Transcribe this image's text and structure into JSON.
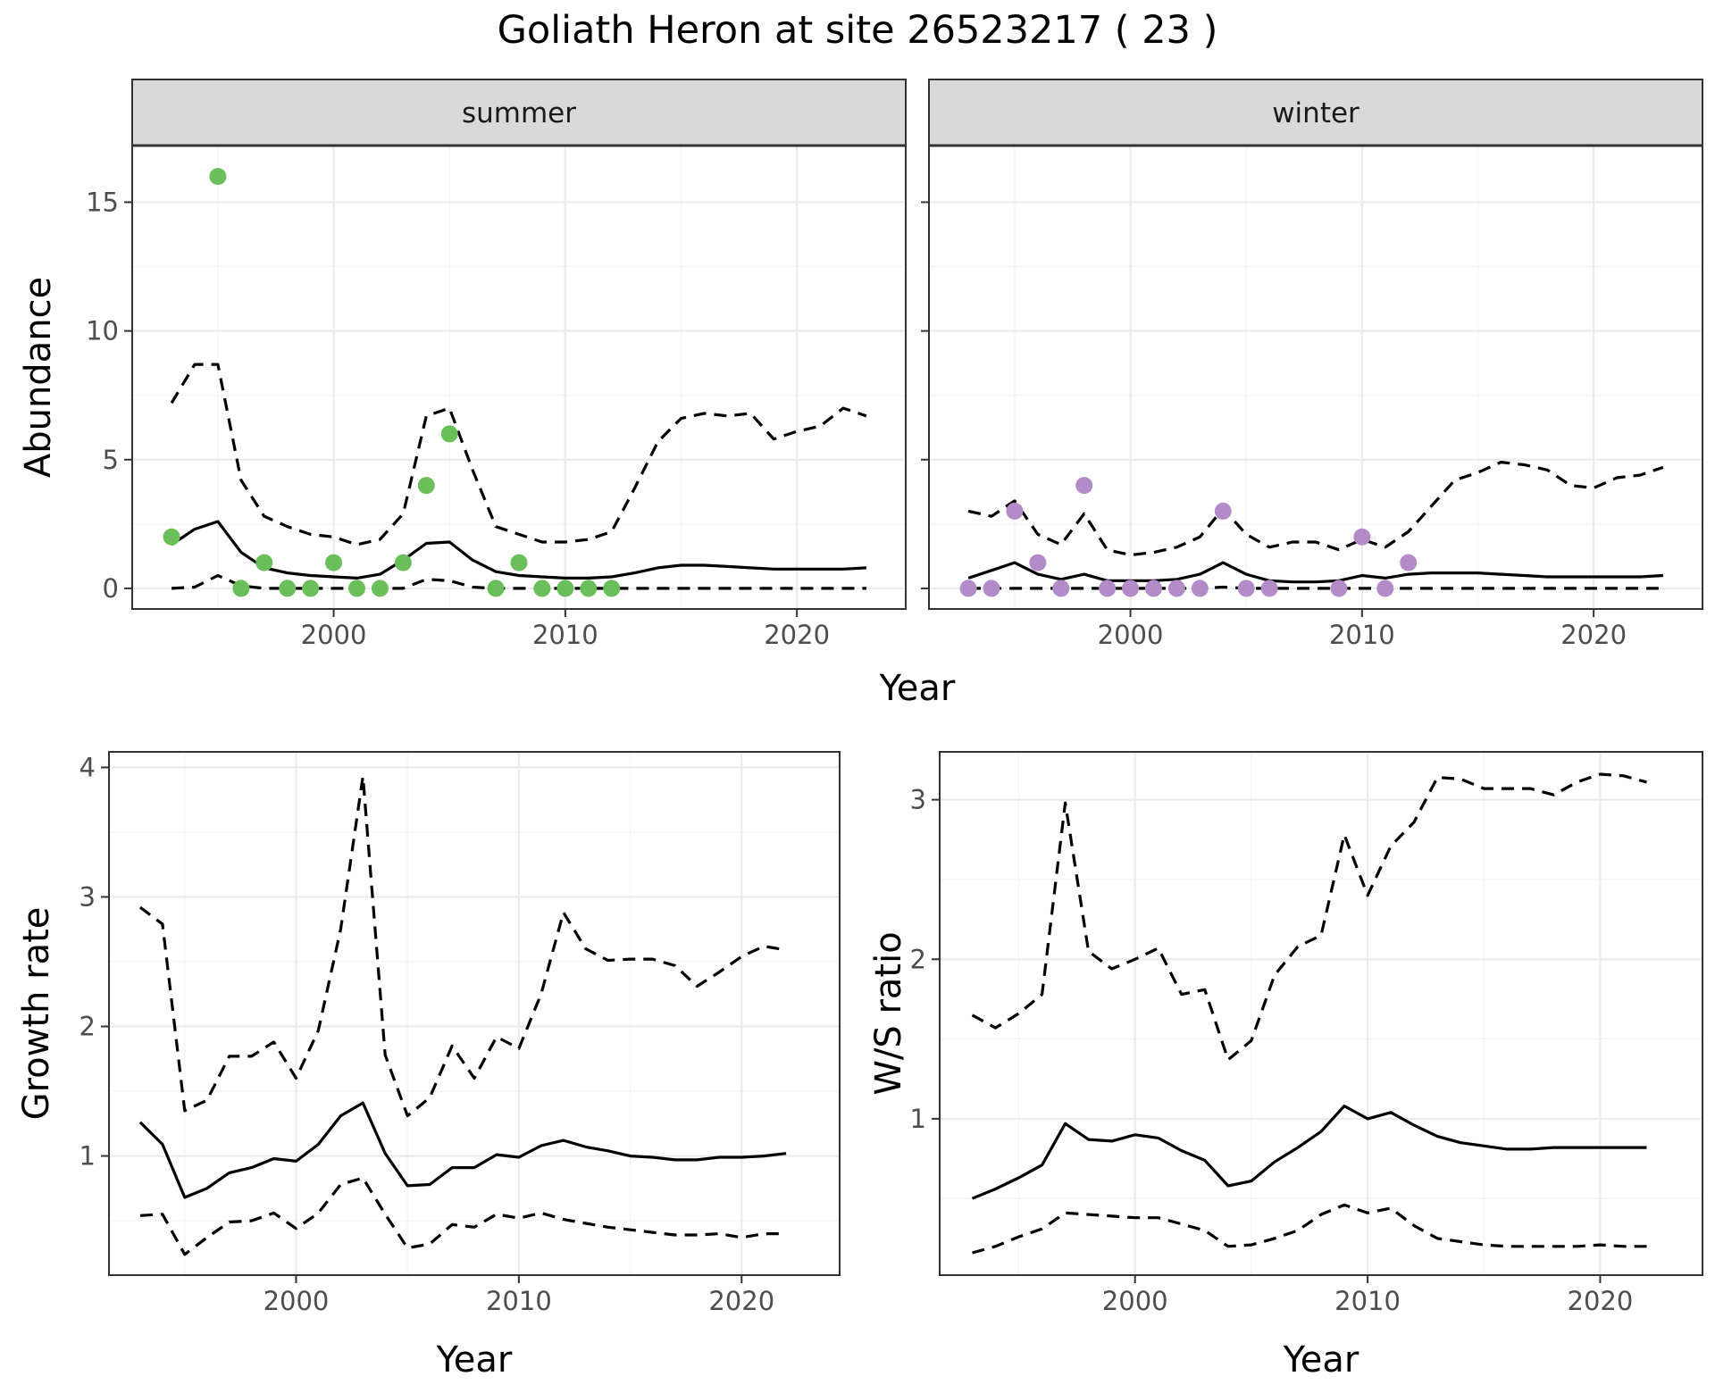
{
  "title": "Goliath Heron at site 26523217 ( 23 )",
  "chart_data": [
    {
      "type": "line",
      "panel": "abundance",
      "facets": [
        {
          "label": "summer",
          "point_color": "#6abf5a",
          "points": {
            "x": [
              1993,
              1995,
              1996,
              1997,
              1998,
              1999,
              2000,
              2001,
              2002,
              2003,
              2004,
              2005,
              2007,
              2008,
              2009,
              2010,
              2011,
              2012
            ],
            "y": [
              2,
              16,
              0,
              1,
              0,
              0,
              1,
              0,
              0,
              1,
              4,
              6,
              0,
              1,
              0,
              0,
              0,
              0
            ]
          },
          "fit": {
            "x": [
              1993,
              1994,
              1995,
              1996,
              1997,
              1998,
              1999,
              2000,
              2001,
              2002,
              2003,
              2004,
              2005,
              2006,
              2007,
              2008,
              2009,
              2010,
              2011,
              2012,
              2013,
              2014,
              2015,
              2016,
              2017,
              2018,
              2019,
              2020,
              2021,
              2022,
              2023
            ],
            "y": [
              1.7,
              2.3,
              2.6,
              1.4,
              0.8,
              0.6,
              0.5,
              0.45,
              0.4,
              0.55,
              1.1,
              1.75,
              1.8,
              1.1,
              0.65,
              0.5,
              0.45,
              0.4,
              0.4,
              0.45,
              0.6,
              0.8,
              0.9,
              0.9,
              0.85,
              0.8,
              0.75,
              0.75,
              0.75,
              0.75,
              0.8
            ]
          },
          "upper": {
            "x": [
              1993,
              1994,
              1995,
              1996,
              1997,
              1998,
              1999,
              2000,
              2001,
              2002,
              2003,
              2004,
              2005,
              2006,
              2007,
              2008,
              2009,
              2010,
              2011,
              2012,
              2013,
              2014,
              2015,
              2016,
              2017,
              2018,
              2019,
              2020,
              2021,
              2022,
              2023
            ],
            "y": [
              7.2,
              8.7,
              8.7,
              4.2,
              2.8,
              2.4,
              2.1,
              2.0,
              1.7,
              1.9,
              2.9,
              6.7,
              7.0,
              4.6,
              2.4,
              2.1,
              1.8,
              1.8,
              1.9,
              2.2,
              3.9,
              5.7,
              6.6,
              6.8,
              6.7,
              6.8,
              5.8,
              6.1,
              6.3,
              7.0,
              6.7
            ]
          },
          "lower": {
            "x": [
              1993,
              1994,
              1995,
              1996,
              1997,
              1998,
              1999,
              2000,
              2001,
              2002,
              2003,
              2004,
              2005,
              2006,
              2007,
              2008,
              2009,
              2010,
              2011,
              2012,
              2013,
              2014,
              2015,
              2016,
              2017,
              2018,
              2019,
              2020,
              2021,
              2022,
              2023
            ],
            "y": [
              0,
              0.05,
              0.5,
              0.1,
              0,
              0,
              0,
              0,
              0,
              0,
              0,
              0.35,
              0.3,
              0.05,
              0,
              0,
              0,
              0,
              0,
              0,
              0,
              0,
              0,
              0,
              0,
              0,
              0,
              0,
              0,
              0,
              0
            ]
          }
        },
        {
          "label": "winter",
          "point_color": "#b28bc8",
          "points": {
            "x": [
              1993,
              1994,
              1995,
              1996,
              1997,
              1998,
              1999,
              2000,
              2001,
              2002,
              2003,
              2004,
              2005,
              2006,
              2009,
              2010,
              2011,
              2012
            ],
            "y": [
              0,
              0,
              3,
              1,
              0,
              4,
              0,
              0,
              0,
              0,
              0,
              3,
              0,
              0,
              0,
              2,
              0,
              1
            ]
          },
          "fit": {
            "x": [
              1993,
              1994,
              1995,
              1996,
              1997,
              1998,
              1999,
              2000,
              2001,
              2002,
              2003,
              2004,
              2005,
              2006,
              2007,
              2008,
              2009,
              2010,
              2011,
              2012,
              2013,
              2014,
              2015,
              2016,
              2017,
              2018,
              2019,
              2020,
              2021,
              2022,
              2023
            ],
            "y": [
              0.4,
              0.7,
              1.0,
              0.55,
              0.35,
              0.55,
              0.3,
              0.3,
              0.3,
              0.35,
              0.55,
              1.0,
              0.55,
              0.3,
              0.25,
              0.25,
              0.3,
              0.5,
              0.4,
              0.55,
              0.6,
              0.6,
              0.6,
              0.55,
              0.5,
              0.45,
              0.45,
              0.45,
              0.45,
              0.45,
              0.5
            ]
          },
          "upper": {
            "x": [
              1993,
              1994,
              1995,
              1996,
              1997,
              1998,
              1999,
              2000,
              2001,
              2002,
              2003,
              2004,
              2005,
              2006,
              2007,
              2008,
              2009,
              2010,
              2011,
              2012,
              2013,
              2014,
              2015,
              2016,
              2017,
              2018,
              2019,
              2020,
              2021,
              2022,
              2023
            ],
            "y": [
              3.0,
              2.8,
              3.4,
              2.1,
              1.7,
              2.9,
              1.5,
              1.3,
              1.4,
              1.6,
              2.0,
              3.1,
              2.1,
              1.6,
              1.8,
              1.8,
              1.5,
              1.9,
              1.6,
              2.2,
              3.2,
              4.2,
              4.5,
              4.9,
              4.8,
              4.6,
              4.0,
              3.9,
              4.3,
              4.4,
              4.7
            ]
          },
          "lower": {
            "x": [
              1993,
              1994,
              1995,
              1996,
              1997,
              1998,
              1999,
              2000,
              2001,
              2002,
              2003,
              2004,
              2005,
              2006,
              2007,
              2008,
              2009,
              2010,
              2011,
              2012,
              2013,
              2014,
              2015,
              2016,
              2017,
              2018,
              2019,
              2020,
              2021,
              2022,
              2023
            ],
            "y": [
              0,
              0,
              0,
              0,
              0,
              0,
              0,
              0,
              0,
              0,
              0,
              0.05,
              0,
              0,
              0,
              0,
              0,
              0,
              0,
              0,
              0,
              0,
              0,
              0,
              0,
              0,
              0,
              0,
              0,
              0,
              0
            ]
          }
        }
      ],
      "xlabel": "Year",
      "ylabel": "Abundance",
      "xlim": [
        1991.3,
        2024.7
      ],
      "ylim": [
        -0.8,
        17.2
      ],
      "xticks": [
        2000,
        2010,
        2020
      ],
      "xtick_labels": [
        "2000",
        "2010",
        "2020"
      ],
      "yticks": [
        0,
        5,
        10,
        15
      ],
      "ytick_labels": [
        "0",
        "5",
        "10",
        "15"
      ],
      "grid": true,
      "shared_y": true
    },
    {
      "type": "line",
      "panel": "growth",
      "fit": {
        "x": [
          1993,
          1994,
          1995,
          1996,
          1997,
          1998,
          1999,
          2000,
          2001,
          2002,
          2003,
          2004,
          2005,
          2006,
          2007,
          2008,
          2009,
          2010,
          2011,
          2012,
          2013,
          2014,
          2015,
          2016,
          2017,
          2018,
          2019,
          2020,
          2021,
          2022
        ],
        "y": [
          1.26,
          1.09,
          0.68,
          0.75,
          0.87,
          0.91,
          0.98,
          0.96,
          1.09,
          1.31,
          1.41,
          1.02,
          0.77,
          0.78,
          0.91,
          0.91,
          1.01,
          0.99,
          1.08,
          1.12,
          1.07,
          1.04,
          1.0,
          0.99,
          0.97,
          0.97,
          0.99,
          0.99,
          1.0,
          1.02
        ]
      },
      "upper": {
        "x": [
          1993,
          1994,
          1995,
          1996,
          1997,
          1998,
          1999,
          2000,
          2001,
          2002,
          2003,
          2004,
          2005,
          2006,
          2007,
          2008,
          2009,
          2010,
          2011,
          2012,
          2013,
          2014,
          2015,
          2016,
          2017,
          2018,
          2019,
          2020,
          2021,
          2022
        ],
        "y": [
          2.92,
          2.79,
          1.35,
          1.43,
          1.77,
          1.77,
          1.88,
          1.6,
          1.97,
          2.75,
          3.93,
          1.78,
          1.31,
          1.45,
          1.85,
          1.6,
          1.92,
          1.83,
          2.25,
          2.88,
          2.6,
          2.51,
          2.52,
          2.52,
          2.47,
          2.31,
          2.42,
          2.54,
          2.62,
          2.59
        ]
      },
      "lower": {
        "x": [
          1993,
          1994,
          1995,
          1996,
          1997,
          1998,
          1999,
          2000,
          2001,
          2002,
          2003,
          2004,
          2005,
          2006,
          2007,
          2008,
          2009,
          2010,
          2011,
          2012,
          2013,
          2014,
          2015,
          2016,
          2017,
          2018,
          2019,
          2020,
          2021,
          2022
        ],
        "y": [
          0.54,
          0.55,
          0.24,
          0.37,
          0.49,
          0.5,
          0.56,
          0.44,
          0.56,
          0.78,
          0.83,
          0.55,
          0.29,
          0.32,
          0.47,
          0.45,
          0.55,
          0.52,
          0.56,
          0.51,
          0.48,
          0.45,
          0.43,
          0.41,
          0.39,
          0.39,
          0.4,
          0.37,
          0.4,
          0.4
        ]
      },
      "xlabel": "Year",
      "ylabel": "Growth rate",
      "xlim": [
        1991.6,
        2024.4
      ],
      "ylim": [
        0.08,
        4.12
      ],
      "xticks": [
        2000,
        2010,
        2020
      ],
      "xtick_labels": [
        "2000",
        "2010",
        "2020"
      ],
      "yticks": [
        1,
        2,
        3,
        4
      ],
      "ytick_labels": [
        "1",
        "2",
        "3",
        "4"
      ],
      "grid": true
    },
    {
      "type": "line",
      "panel": "ratio",
      "fit": {
        "x": [
          1993,
          1994,
          1995,
          1996,
          1997,
          1998,
          1999,
          2000,
          2001,
          2002,
          2003,
          2004,
          2005,
          2006,
          2007,
          2008,
          2009,
          2010,
          2011,
          2012,
          2013,
          2014,
          2015,
          2016,
          2017,
          2018,
          2019,
          2020,
          2021,
          2022
        ],
        "y": [
          0.5,
          0.56,
          0.63,
          0.71,
          0.97,
          0.87,
          0.86,
          0.9,
          0.88,
          0.8,
          0.74,
          0.58,
          0.61,
          0.73,
          0.82,
          0.92,
          1.08,
          1.0,
          1.04,
          0.96,
          0.89,
          0.85,
          0.83,
          0.81,
          0.81,
          0.82,
          0.82,
          0.82,
          0.82,
          0.82
        ]
      },
      "upper": {
        "x": [
          1993,
          1994,
          1995,
          1996,
          1997,
          1998,
          1999,
          2000,
          2001,
          2002,
          2003,
          2004,
          2005,
          2006,
          2007,
          2008,
          2009,
          2010,
          2011,
          2012,
          2013,
          2014,
          2015,
          2016,
          2017,
          2018,
          2019,
          2020,
          2021,
          2022
        ],
        "y": [
          1.65,
          1.57,
          1.66,
          1.78,
          2.98,
          2.05,
          1.94,
          2.0,
          2.07,
          1.78,
          1.81,
          1.37,
          1.49,
          1.9,
          2.08,
          2.15,
          2.78,
          2.4,
          2.71,
          2.86,
          3.14,
          3.13,
          3.07,
          3.07,
          3.07,
          3.03,
          3.11,
          3.16,
          3.15,
          3.11
        ]
      },
      "lower": {
        "x": [
          1993,
          1994,
          1995,
          1996,
          1997,
          1998,
          1999,
          2000,
          2001,
          2002,
          2003,
          2004,
          2005,
          2006,
          2007,
          2008,
          2009,
          2010,
          2011,
          2012,
          2013,
          2014,
          2015,
          2016,
          2017,
          2018,
          2019,
          2020,
          2021,
          2022
        ],
        "y": [
          0.16,
          0.2,
          0.26,
          0.31,
          0.41,
          0.4,
          0.39,
          0.38,
          0.38,
          0.34,
          0.3,
          0.2,
          0.21,
          0.25,
          0.3,
          0.4,
          0.46,
          0.41,
          0.44,
          0.33,
          0.25,
          0.23,
          0.21,
          0.2,
          0.2,
          0.2,
          0.2,
          0.21,
          0.2,
          0.2
        ]
      },
      "xlabel": "Year",
      "ylabel": "W/S ratio",
      "xlim": [
        1991.6,
        2024.4
      ],
      "ylim": [
        0.02,
        3.3
      ],
      "xticks": [
        2000,
        2010,
        2020
      ],
      "xtick_labels": [
        "2000",
        "2010",
        "2020"
      ],
      "yticks": [
        1,
        2,
        3
      ],
      "ytick_labels": [
        "1",
        "2",
        "3"
      ],
      "grid": true
    }
  ]
}
